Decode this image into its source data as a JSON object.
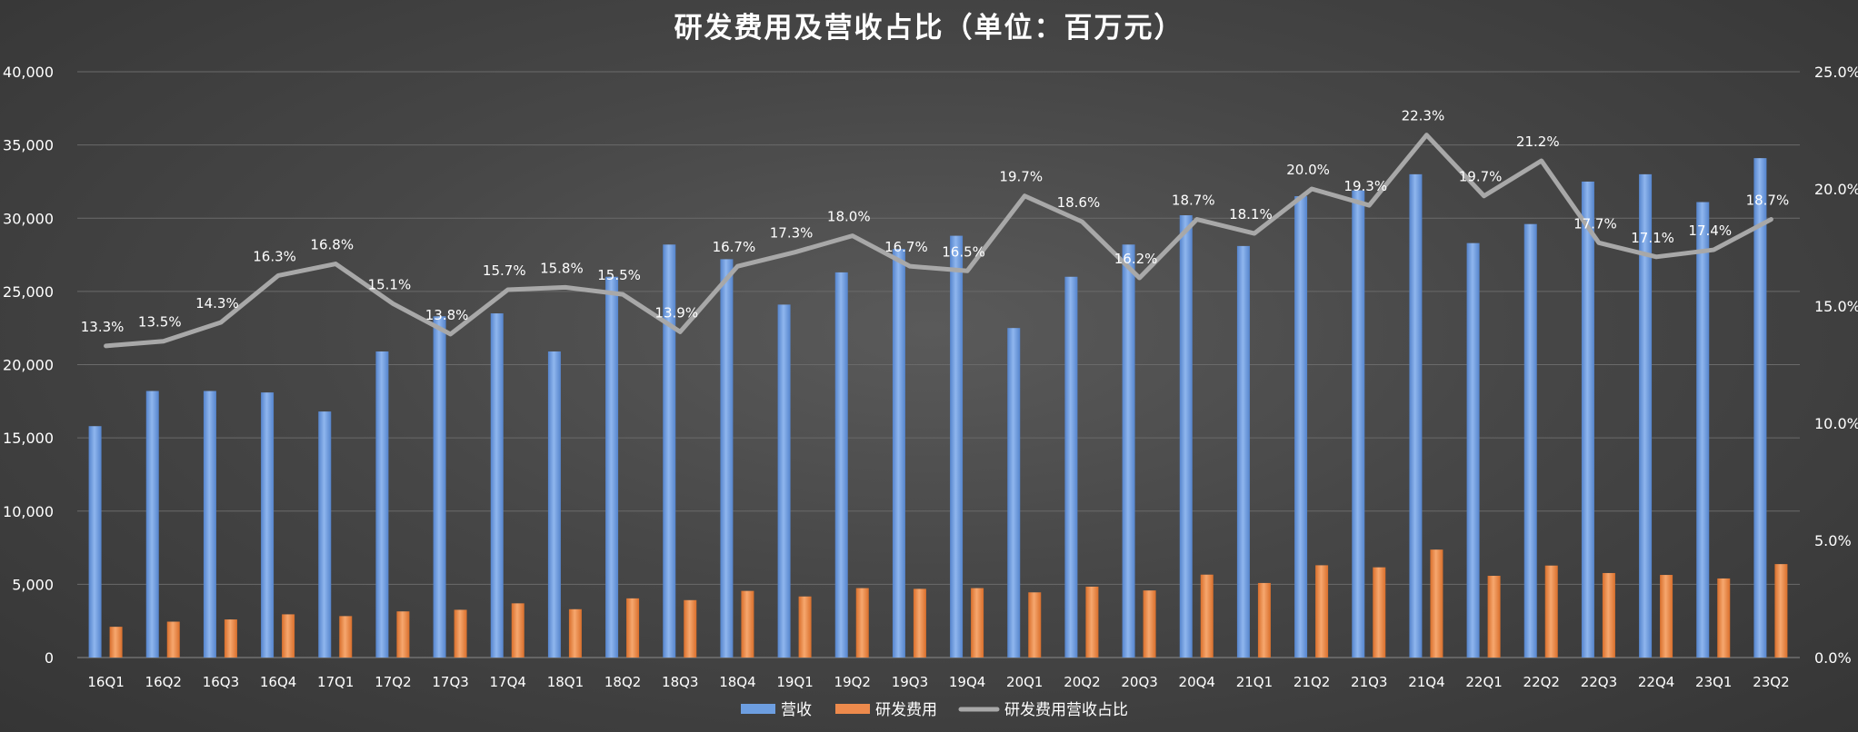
{
  "chart_data": {
    "type": "bar",
    "title": "研发费用及营收占比（单位：百万元）",
    "categories": [
      "16Q1",
      "16Q2",
      "16Q3",
      "16Q4",
      "17Q1",
      "17Q2",
      "17Q3",
      "17Q4",
      "18Q1",
      "18Q2",
      "18Q3",
      "18Q4",
      "19Q1",
      "19Q2",
      "19Q3",
      "19Q4",
      "20Q1",
      "20Q2",
      "20Q3",
      "20Q4",
      "21Q1",
      "21Q2",
      "21Q3",
      "21Q4",
      "22Q1",
      "22Q2",
      "22Q3",
      "22Q4",
      "23Q1",
      "23Q2"
    ],
    "y_left": {
      "min": 0,
      "max": 40000,
      "ticks": [
        "0",
        "5,000",
        "10,000",
        "15,000",
        "20,000",
        "25,000",
        "30,000",
        "35,000",
        "40,000"
      ]
    },
    "y_right": {
      "min": 0,
      "max": 25,
      "ticks": [
        "0.0%",
        "5.0%",
        "10.0%",
        "15.0%",
        "20.0%",
        "25.0%"
      ]
    },
    "series": [
      {
        "name": "营收",
        "kind": "bar",
        "color": "#6d9ee0",
        "values": [
          15800,
          18200,
          18200,
          18100,
          16800,
          20900,
          23300,
          23500,
          20900,
          26000,
          28200,
          27200,
          24100,
          26300,
          27900,
          28800,
          22500,
          26000,
          28200,
          30200,
          28100,
          31500,
          31900,
          33000,
          28300,
          29600,
          32500,
          33000,
          31100,
          34100
        ]
      },
      {
        "name": "研发费用",
        "kind": "bar",
        "color": "#ed8a4c",
        "values": [
          2100,
          2450,
          2600,
          2950,
          2830,
          3150,
          3260,
          3700,
          3300,
          4040,
          3920,
          4550,
          4170,
          4740,
          4690,
          4740,
          4450,
          4840,
          4580,
          5660,
          5090,
          6300,
          6160,
          7370,
          5580,
          6280,
          5770,
          5640,
          5400,
          6380
        ]
      },
      {
        "name": "研发费用营收占比",
        "kind": "line",
        "color": "#a8a8a8",
        "values": [
          13.3,
          13.5,
          14.3,
          16.3,
          16.8,
          15.1,
          13.8,
          15.7,
          15.8,
          15.5,
          13.9,
          16.7,
          17.3,
          18.0,
          16.7,
          16.5,
          19.7,
          18.6,
          16.2,
          18.7,
          18.1,
          20.0,
          19.3,
          22.3,
          19.7,
          21.2,
          17.7,
          17.1,
          17.4,
          18.7
        ],
        "labels": [
          "13.3%",
          "13.5%",
          "14.3%",
          "16.3%",
          "16.8%",
          "15.1%",
          "13.8%",
          "15.7%",
          "15.8%",
          "15.5%",
          "13.9%",
          "16.7%",
          "17.3%",
          "18.0%",
          "16.7%",
          "16.5%",
          "19.7%",
          "18.6%",
          "16.2%",
          "18.7%",
          "18.1%",
          "20.0%",
          "19.3%",
          "22.3%",
          "19.7%",
          "21.2%",
          "17.7%",
          "17.1%",
          "17.4%",
          "18.7%"
        ]
      }
    ],
    "grid": true,
    "legend_position": "bottom"
  }
}
